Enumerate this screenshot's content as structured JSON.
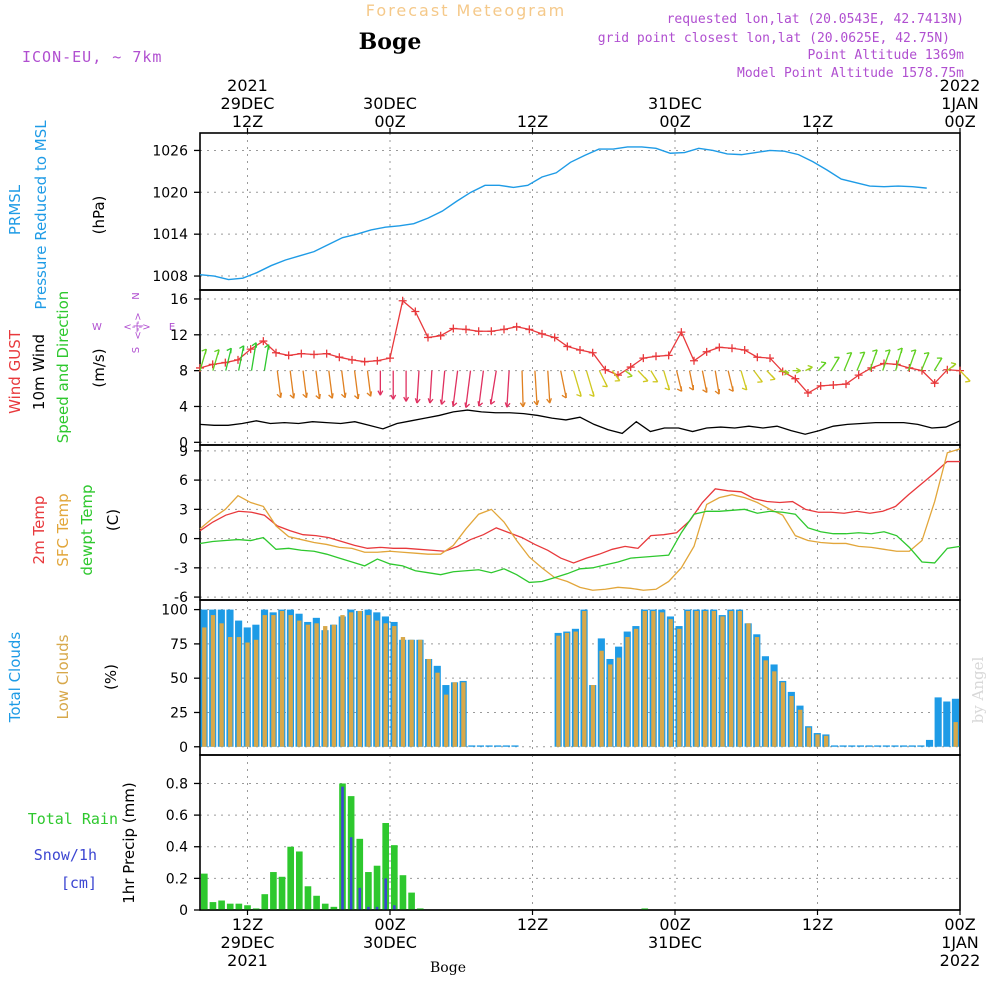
{
  "header": {
    "title": "Forecast Meteogram",
    "location": "Boge",
    "model": "ICON-EU, ~ 7km",
    "requested": "requested lon,lat (20.0543E, 42.7413N)",
    "grid": "grid point closest lon,lat (20.0625E, 42.75N)",
    "altitude": "Point Altitude 1369m",
    "model_altitude": "Model Point Altitude 1578.75m",
    "footer_location": "Boge",
    "credit": "by Angel"
  },
  "time_axis": {
    "start": "2021-12-29 07Z",
    "step_hours": 1,
    "top_labels": [
      {
        "hour": 5,
        "lines": [
          "2021",
          "29DEC",
          "12Z"
        ]
      },
      {
        "hour": 17,
        "lines": [
          "30DEC",
          "00Z"
        ]
      },
      {
        "hour": 29,
        "lines": [
          "12Z"
        ]
      },
      {
        "hour": 41,
        "lines": [
          "31DEC",
          "00Z"
        ]
      },
      {
        "hour": 53,
        "lines": [
          "12Z"
        ]
      },
      {
        "hour": 65,
        "lines": [
          "2022",
          "1JAN",
          "00Z"
        ]
      }
    ],
    "bottom_labels": [
      {
        "hour": 5,
        "lines": [
          "12Z",
          "29DEC",
          "2021"
        ]
      },
      {
        "hour": 17,
        "lines": [
          "00Z",
          "30DEC"
        ]
      },
      {
        "hour": 29,
        "lines": [
          "12Z"
        ]
      },
      {
        "hour": 41,
        "lines": [
          "00Z",
          "31DEC"
        ]
      },
      {
        "hour": 53,
        "lines": [
          "12Z"
        ]
      },
      {
        "hour": 65,
        "lines": [
          "00Z",
          "1JAN",
          "2022"
        ]
      }
    ]
  },
  "labels": {
    "prmsl": "PRMSL",
    "pressure": "Pressure Reduced to MSL",
    "hpa": "(hPa)",
    "gust": "Wind GUST",
    "wind10": "10m Wind",
    "speeddir": "Speed and Direction",
    "ms": "(m/s)",
    "temp2m": "2m Temp",
    "sfctemp": "SFC Temp",
    "dewpt": "dewpt Temp",
    "degc": "(C)",
    "totalclouds": "Total Clouds",
    "lowclouds": "Low Clouds",
    "pct": "(%)",
    "totalrain": "Total Rain",
    "snow": "Snow/1h",
    "cm": "[cm]",
    "precip": "1hr Precip (mm)",
    "compass_n": "N",
    "compass_s": "S",
    "compass_w": "W",
    "compass_e": "E"
  },
  "colors": {
    "pressure": "#1e9be6",
    "gust": "#e8393c",
    "wind": "#000000",
    "temp": "#e8393c",
    "sfc": "#e2a63a",
    "dewpt": "#2ec82e",
    "cloud_total": "#1e9be6",
    "cloud_low": "#d7a84a",
    "rain": "#2ec82e",
    "snow": "#3c46d2",
    "purple": "#b04fd0",
    "title": "#f5c98a"
  },
  "chart_data": [
    {
      "type": "line",
      "name": "pressure",
      "ylabel": "Pressure Reduced to MSL (hPa)",
      "ylim": [
        1006,
        1028.5
      ],
      "yticks": [
        1008,
        1014,
        1020,
        1026
      ],
      "series": [
        {
          "name": "PRMSL",
          "values": [
            1008.2,
            1008.0,
            1007.5,
            1007.7,
            1008.5,
            1009.5,
            1010.3,
            1010.9,
            1011.5,
            1012.5,
            1013.5,
            1014.0,
            1014.6,
            1015.0,
            1015.2,
            1015.5,
            1016.3,
            1017.3,
            1018.7,
            1020.0,
            1021.0,
            1021.0,
            1020.7,
            1021.0,
            1022.2,
            1022.8,
            1024.3,
            1025.3,
            1026.2,
            1026.2,
            1026.5,
            1026.5,
            1026.3,
            1025.6,
            1025.7,
            1026.3,
            1026.0,
            1025.5,
            1025.4,
            1025.7,
            1026.0,
            1025.9,
            1025.4,
            1024.4,
            1023.2,
            1021.9,
            1021.4,
            1020.9,
            1020.8,
            1020.9,
            1020.8,
            1020.6
          ]
        }
      ]
    },
    {
      "type": "line",
      "name": "wind",
      "ylabel": "(m/s)",
      "ylim": [
        -0.3,
        17
      ],
      "yticks": [
        0,
        4,
        8,
        12,
        16
      ],
      "series": [
        {
          "name": "Wind GUST",
          "values": [
            8.3,
            8.7,
            8.9,
            9.2,
            10.4,
            11.3,
            10.0,
            9.7,
            9.9,
            9.8,
            9.9,
            9.5,
            9.2,
            9.0,
            9.1,
            9.4,
            15.8,
            14.6,
            11.7,
            11.9,
            12.7,
            12.6,
            12.4,
            12.4,
            12.6,
            12.9,
            12.6,
            12.1,
            11.7,
            10.7,
            10.3,
            10.0,
            8.1,
            7.5,
            8.4,
            9.4,
            9.6,
            9.7,
            12.3,
            9.1,
            10.1,
            10.6,
            10.5,
            10.3,
            9.5,
            9.4,
            7.9,
            7.1,
            5.5,
            6.3,
            6.4,
            6.5,
            7.5,
            8.3,
            8.8,
            8.7,
            8.3,
            8.0,
            6.6,
            8.1,
            8.0
          ]
        },
        {
          "name": "10m Wind",
          "values": [
            2.0,
            1.9,
            1.9,
            2.1,
            2.4,
            2.1,
            2.2,
            2.1,
            2.3,
            2.2,
            2.1,
            2.3,
            1.9,
            1.5,
            2.1,
            2.4,
            2.7,
            3.0,
            3.4,
            3.6,
            3.4,
            3.3,
            3.3,
            3.2,
            3.0,
            2.7,
            2.5,
            2.8,
            2.0,
            1.4,
            1.0,
            2.3,
            1.2,
            1.6,
            1.6,
            1.2,
            1.6,
            1.7,
            1.6,
            1.8,
            1.6,
            1.8,
            1.3,
            0.9,
            1.3,
            1.8,
            2.0,
            2.1,
            2.2,
            2.2,
            2.2,
            2.0,
            1.6,
            1.7,
            2.4
          ]
        }
      ],
      "wind_barbs": [
        40,
        40,
        35,
        30,
        25,
        25,
        160,
        160,
        160,
        160,
        160,
        160,
        160,
        160,
        180,
        180,
        180,
        190,
        190,
        195,
        200,
        200,
        200,
        205,
        190,
        175,
        170,
        170,
        150,
        140,
        140,
        125,
        115,
        105,
        110,
        120,
        140,
        145,
        150,
        150,
        155,
        145,
        140,
        115,
        110,
        95,
        90,
        80,
        70,
        60,
        50,
        50,
        45,
        45,
        40,
        45,
        50,
        60,
        75,
        110
      ]
    },
    {
      "type": "line",
      "name": "temperature",
      "ylabel": "(C)",
      "ylim": [
        -6.3,
        9.6
      ],
      "yticks": [
        -6,
        -3,
        0,
        3,
        6,
        9
      ],
      "series": [
        {
          "name": "2m Temp",
          "values": [
            0.8,
            1.7,
            2.4,
            2.8,
            2.7,
            2.4,
            1.3,
            0.8,
            0.4,
            0.3,
            0.1,
            -0.3,
            -0.7,
            -1.0,
            -0.9,
            -1.0,
            -1.0,
            -1.1,
            -1.2,
            -1.3,
            -0.8,
            -0.1,
            0.4,
            1.1,
            0.6,
            0.1,
            -0.6,
            -1.2,
            -2.0,
            -2.5,
            -2.0,
            -1.6,
            -1.1,
            -0.8,
            -1.0,
            0.3,
            0.4,
            0.6,
            1.8,
            3.7,
            5.1,
            4.9,
            4.8,
            4.1,
            3.8,
            3.7,
            3.8,
            3.0,
            2.7,
            2.7,
            2.6,
            2.8,
            2.6,
            2.8,
            3.3,
            4.5,
            5.6,
            6.7,
            7.9,
            7.9
          ]
        },
        {
          "name": "SFC Temp",
          "values": [
            1.0,
            2.1,
            3.0,
            4.4,
            3.7,
            3.3,
            1.3,
            0.2,
            -0.1,
            -0.4,
            -0.6,
            -0.9,
            -1.0,
            -1.4,
            -1.4,
            -1.3,
            -1.4,
            -1.5,
            -1.6,
            -1.6,
            -0.7,
            1.0,
            2.5,
            3.0,
            1.7,
            -0.2,
            -1.9,
            -3.0,
            -4.0,
            -4.4,
            -5.0,
            -5.3,
            -5.2,
            -5.0,
            -5.1,
            -5.3,
            -5.2,
            -4.4,
            -3.0,
            -0.8,
            3.5,
            4.2,
            4.5,
            4.2,
            3.7,
            3.0,
            2.4,
            0.3,
            -0.2,
            -0.4,
            -0.5,
            -0.5,
            -0.8,
            -0.9,
            -1.1,
            -1.3,
            -1.3,
            -0.2,
            3.8,
            8.8,
            9.2
          ]
        },
        {
          "name": "dewpt Temp",
          "values": [
            -0.5,
            -0.3,
            -0.2,
            -0.1,
            -0.2,
            0.1,
            -1.1,
            -1.0,
            -1.2,
            -1.3,
            -1.6,
            -2.0,
            -2.4,
            -2.8,
            -2.1,
            -2.6,
            -2.8,
            -3.3,
            -3.5,
            -3.7,
            -3.4,
            -3.3,
            -3.2,
            -3.5,
            -3.1,
            -3.7,
            -4.5,
            -4.4,
            -4.0,
            -3.6,
            -3.1,
            -3.0,
            -2.7,
            -2.4,
            -2.0,
            -1.9,
            -1.8,
            -1.7,
            0.6,
            2.5,
            2.8,
            2.8,
            2.9,
            3.0,
            2.6,
            2.8,
            2.7,
            2.5,
            1.1,
            0.7,
            0.5,
            0.5,
            0.6,
            0.5,
            0.7,
            0.3,
            -0.9,
            -2.4,
            -2.5,
            -1.0,
            -0.8
          ]
        }
      ]
    },
    {
      "type": "bar",
      "name": "clouds",
      "ylabel": "(%)",
      "ylim": [
        -6,
        107
      ],
      "yticks": [
        0,
        25,
        50,
        75,
        100
      ],
      "series": [
        {
          "name": "Total Clouds",
          "values": [
            100,
            100,
            100,
            100,
            92,
            87,
            89,
            100,
            98,
            100,
            100,
            97,
            91,
            94,
            85,
            89,
            95,
            100,
            99,
            100,
            98,
            95,
            91,
            78,
            78,
            78,
            64,
            59,
            45,
            47,
            48,
            1,
            1,
            1,
            1,
            1,
            1,
            0,
            0,
            0,
            0,
            83,
            84,
            86,
            100,
            45,
            79,
            64,
            73,
            84,
            88,
            100,
            100,
            100,
            95,
            88,
            100,
            100,
            100,
            100,
            96,
            100,
            100,
            90,
            82,
            66,
            60,
            48,
            40,
            30,
            15,
            10,
            9,
            1,
            1,
            1,
            1,
            1,
            1,
            1,
            1,
            1,
            1,
            1,
            5,
            36,
            33,
            35
          ]
        },
        {
          "name": "Low Clouds",
          "values": [
            87,
            96,
            90,
            80,
            80,
            76,
            78,
            96,
            96,
            99,
            96,
            92,
            89,
            90,
            88,
            89,
            96,
            98,
            99,
            96,
            92,
            90,
            88,
            80,
            78,
            78,
            64,
            54,
            38,
            47,
            47,
            0,
            0,
            0,
            0,
            0,
            0,
            0,
            0,
            0,
            0,
            81,
            83,
            84,
            99,
            45,
            70,
            60,
            65,
            80,
            86,
            99,
            99,
            98,
            93,
            86,
            99,
            99,
            99,
            99,
            95,
            99,
            99,
            90,
            80,
            63,
            55,
            47,
            37,
            27,
            14,
            9,
            8,
            0,
            0,
            0,
            0,
            0,
            0,
            0,
            0,
            0,
            0,
            0,
            0,
            0,
            0,
            18
          ]
        }
      ]
    },
    {
      "type": "bar",
      "name": "precip",
      "ylabel": "1hr Precip (mm)",
      "ylim": [
        0,
        0.98
      ],
      "yticks": [
        0,
        0.2,
        0.4,
        0.6,
        0.8
      ],
      "series": [
        {
          "name": "Total Rain",
          "values": [
            0.23,
            0.05,
            0.06,
            0.04,
            0.04,
            0.03,
            0.01,
            0.1,
            0.24,
            0.21,
            0.4,
            0.37,
            0.15,
            0.09,
            0.04,
            0.02,
            0.8,
            0.72,
            0.45,
            0.24,
            0.28,
            0.55,
            0.41,
            0.22,
            0.11,
            0.01,
            0,
            0,
            0,
            0,
            0,
            0,
            0,
            0,
            0,
            0,
            0,
            0,
            0,
            0,
            0,
            0,
            0,
            0,
            0,
            0,
            0,
            0,
            0,
            0,
            0,
            0.01,
            0,
            0,
            0,
            0,
            0,
            0,
            0,
            0,
            0,
            0,
            0,
            0,
            0,
            0,
            0,
            0,
            0,
            0,
            0,
            0,
            0,
            0,
            0,
            0,
            0,
            0,
            0,
            0,
            0,
            0,
            0,
            0,
            0,
            0,
            0,
            0
          ]
        },
        {
          "name": "Snow/1h",
          "values": [
            0,
            0,
            0,
            0,
            0,
            0,
            0,
            0,
            0,
            0,
            0,
            0,
            0,
            0,
            0,
            0,
            0.78,
            0.46,
            0.14,
            0.02,
            0.02,
            0.2,
            0.03,
            0,
            0,
            0,
            0,
            0,
            0,
            0,
            0,
            0,
            0,
            0,
            0,
            0,
            0,
            0,
            0,
            0,
            0,
            0,
            0,
            0,
            0,
            0,
            0,
            0,
            0,
            0,
            0,
            0,
            0,
            0,
            0,
            0,
            0,
            0,
            0,
            0,
            0,
            0,
            0,
            0,
            0,
            0,
            0,
            0,
            0,
            0,
            0,
            0,
            0,
            0,
            0,
            0,
            0,
            0,
            0,
            0,
            0,
            0,
            0,
            0,
            0,
            0,
            0,
            0
          ]
        }
      ]
    }
  ]
}
